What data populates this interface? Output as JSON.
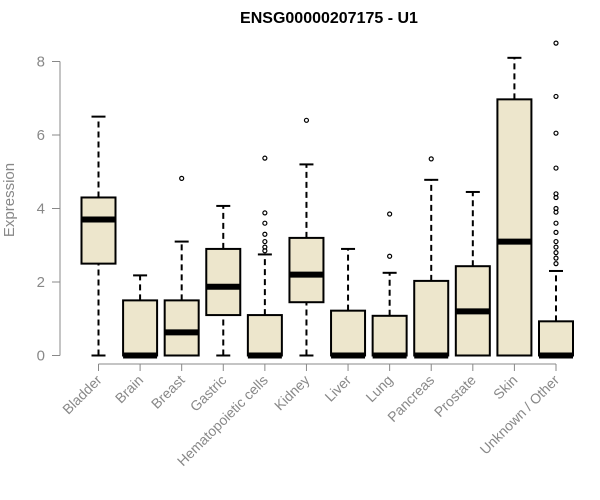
{
  "chart_data": {
    "type": "box",
    "title": "ENSG00000207175 - U1",
    "xlabel": "",
    "ylabel": "Expression",
    "ylim": [
      0,
      8
    ],
    "yticks": [
      0,
      2,
      4,
      6,
      8
    ],
    "grid": false,
    "box_fill": "#ede6cc",
    "median_color": "#000000",
    "categories": [
      "Bladder",
      "Brain",
      "Breast",
      "Gastric",
      "Hematopoietic cells",
      "Kidney",
      "Liver",
      "Lung",
      "Pancreas",
      "Prostate",
      "Skin",
      "Unknown / Other"
    ],
    "boxes": [
      {
        "whisker_low": 0,
        "q1": 2.5,
        "median": 3.7,
        "q3": 4.3,
        "whisker_high": 6.5,
        "outliers": []
      },
      {
        "whisker_low": 0,
        "q1": 0,
        "median": 0,
        "q3": 1.5,
        "whisker_high": 2.18,
        "outliers": []
      },
      {
        "whisker_low": 0,
        "q1": 0,
        "median": 0.63,
        "q3": 1.5,
        "whisker_high": 3.1,
        "outliers": [
          4.82
        ]
      },
      {
        "whisker_low": 0,
        "q1": 1.1,
        "median": 1.87,
        "q3": 2.9,
        "whisker_high": 4.07,
        "outliers": []
      },
      {
        "whisker_low": 0,
        "q1": 0,
        "median": 0,
        "q3": 1.1,
        "whisker_high": 2.75,
        "outliers": [
          5.37,
          3.88,
          3.6,
          3.3,
          3.1,
          2.95,
          2.85
        ]
      },
      {
        "whisker_low": 0,
        "q1": 1.45,
        "median": 2.2,
        "q3": 3.2,
        "whisker_high": 5.2,
        "outliers": [
          6.4
        ]
      },
      {
        "whisker_low": 0,
        "q1": 0,
        "median": 0,
        "q3": 1.22,
        "whisker_high": 2.9,
        "outliers": []
      },
      {
        "whisker_low": 0,
        "q1": 0,
        "median": 0,
        "q3": 1.08,
        "whisker_high": 2.25,
        "outliers": [
          3.85,
          2.7
        ]
      },
      {
        "whisker_low": 0,
        "q1": 0,
        "median": 0,
        "q3": 2.03,
        "whisker_high": 4.78,
        "outliers": [
          5.35
        ]
      },
      {
        "whisker_low": 0,
        "q1": 0,
        "median": 1.2,
        "q3": 2.43,
        "whisker_high": 4.45,
        "outliers": []
      },
      {
        "whisker_low": 0,
        "q1": 0,
        "median": 3.1,
        "q3": 6.97,
        "whisker_high": 8.1,
        "outliers": []
      },
      {
        "whisker_low": 0,
        "q1": 0,
        "median": 0,
        "q3": 0.93,
        "whisker_high": 2.3,
        "outliers": [
          8.5,
          7.05,
          6.05,
          5.1,
          4.4,
          4.3,
          4.0,
          3.9,
          3.6,
          3.35,
          3.1,
          2.95,
          2.8,
          2.65,
          2.5
        ]
      }
    ]
  }
}
